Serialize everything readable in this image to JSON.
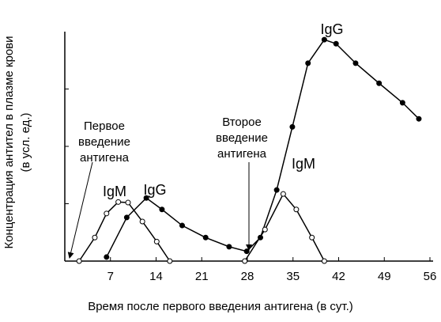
{
  "chart_data": {
    "type": "line",
    "y_label": [
      "Концентрация антител в плазме крови",
      "(в усл. ед.)"
    ],
    "x_label": "Время после первого введения антигена (в сут.)",
    "xlim": [
      0,
      56
    ],
    "xticks": [
      7,
      14,
      21,
      28,
      35,
      42,
      49,
      56
    ],
    "ylim": [
      0,
      4
    ],
    "yticks": [
      1,
      2,
      3
    ],
    "series": [
      {
        "name": "IgM",
        "color": "#000",
        "marker": "open",
        "x": [
          2.2,
          4.6,
          6.4,
          8.2,
          9.7,
          11.9,
          14.1,
          16.1
        ],
        "values": [
          0,
          0.41,
          0.83,
          1.03,
          1.02,
          0.69,
          0.34,
          0
        ]
      },
      {
        "name": "IgG",
        "color": "#000",
        "marker": "filled",
        "x": [
          6.4,
          9.5,
          12.5,
          14.9,
          18,
          21.6,
          25.2,
          27.9,
          30,
          32.5,
          34.9,
          37.3,
          39.8,
          41.6,
          44.6,
          48.2,
          51.8,
          54.3
        ],
        "values": [
          0.07,
          0.76,
          1.1,
          0.9,
          0.62,
          0.41,
          0.25,
          0.17,
          0.41,
          1.24,
          2.34,
          3.45,
          3.86,
          3.79,
          3.45,
          3.1,
          2.76,
          2.48
        ]
      },
      {
        "name": "IgM",
        "color": "#000",
        "marker": "open",
        "x": [
          27.6,
          30.7,
          33.5,
          35.5,
          37.9,
          39.8
        ],
        "values": [
          0,
          0.55,
          1.17,
          0.9,
          0.41,
          0
        ]
      }
    ],
    "annotations": [
      {
        "text": [
          "Первое",
          "введение",
          "антигена"
        ]
      },
      {
        "text": [
          "Второе",
          "введение",
          "антигена"
        ]
      }
    ]
  }
}
